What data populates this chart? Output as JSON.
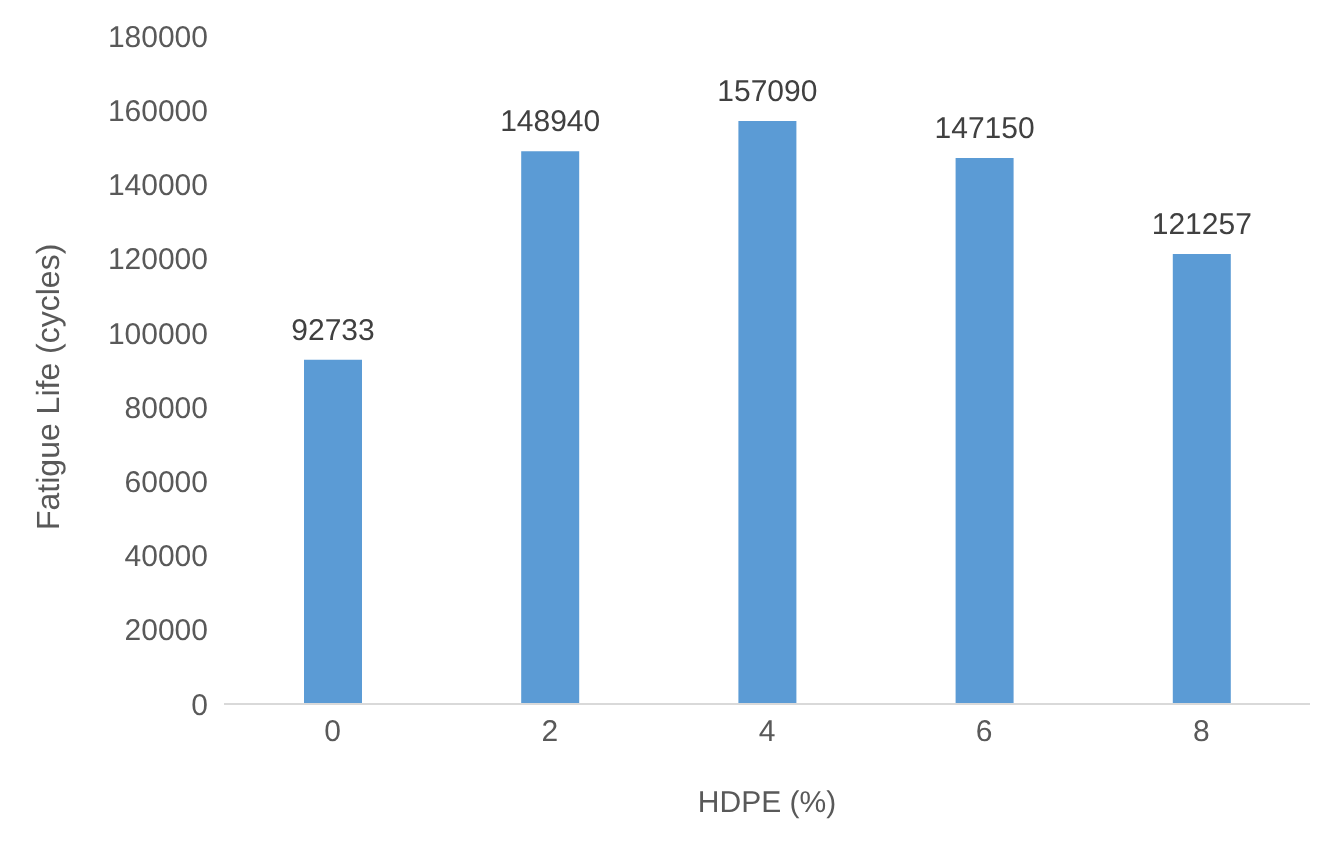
{
  "chart_data": {
    "type": "bar",
    "xlabel": "HDPE (%)",
    "ylabel": "Fatigue Life (cycles)",
    "categories": [
      "0",
      "2",
      "4",
      "6",
      "8"
    ],
    "values": [
      92733,
      148940,
      157090,
      147150,
      121257
    ],
    "color": "#5b9bd5",
    "ylim": [
      0,
      180000
    ],
    "yticks": [
      0,
      20000,
      40000,
      60000,
      80000,
      100000,
      120000,
      140000,
      160000,
      180000
    ],
    "grid": false,
    "data_labels": true
  }
}
